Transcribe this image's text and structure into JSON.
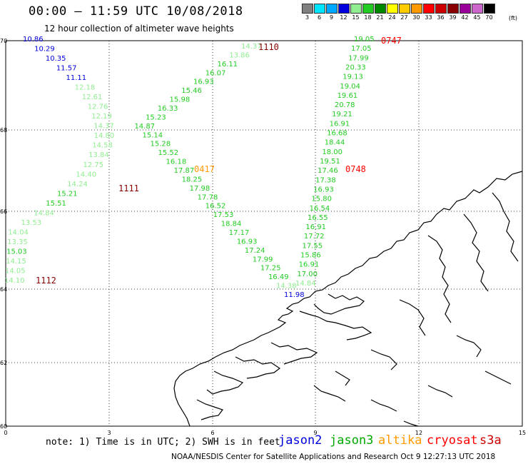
{
  "header": {
    "title": "00:00 – 11:59 UTC 10/08/2018",
    "subtitle": "12 hour collection of altimeter wave heights"
  },
  "color_scale": {
    "unit": "(ft)",
    "bins": [
      {
        "label": "3",
        "color": "#808080"
      },
      {
        "label": "6",
        "color": "#00e5ff"
      },
      {
        "label": "9",
        "color": "#00a8ff"
      },
      {
        "label": "12",
        "color": "#0000dd"
      },
      {
        "label": "15",
        "color": "#90ee90"
      },
      {
        "label": "18",
        "color": "#22cc22"
      },
      {
        "label": "21",
        "color": "#008800"
      },
      {
        "label": "24",
        "color": "#ffff00"
      },
      {
        "label": "27",
        "color": "#ffcc00"
      },
      {
        "label": "30",
        "color": "#ff9900"
      },
      {
        "label": "33",
        "color": "#ff0000"
      },
      {
        "label": "36",
        "color": "#cc0000"
      },
      {
        "label": "39",
        "color": "#880000"
      },
      {
        "label": "42",
        "color": "#990099"
      },
      {
        "label": "45",
        "color": "#cc66cc"
      },
      {
        "label": "70",
        "color": "#000000"
      }
    ]
  },
  "axes": {
    "lon_ticks": [
      "0",
      "3",
      "6",
      "9",
      "12",
      "15"
    ],
    "lat_ticks": [
      "70",
      "68",
      "66",
      "64",
      "62",
      "60"
    ]
  },
  "tracks": [
    {
      "values": [
        "10.86",
        "10.29",
        "10.35",
        "11.57",
        "11.11",
        "12.18",
        "12.61",
        "12.76",
        "12.19",
        "14.37",
        "14.80",
        "14.58",
        "13.84",
        "12.75",
        "14.40",
        "14.24",
        "15.21",
        "15.51",
        "14.84",
        "13.53",
        "14.04",
        "13.35",
        "15.03",
        "14.15",
        "14.05",
        "14.10"
      ],
      "colors": [
        "#0000dd",
        "#0000dd",
        "#0000dd",
        "#0000dd",
        "#0000dd",
        "#90ee90",
        "#90ee90",
        "#90ee90",
        "#90ee90",
        "#90ee90",
        "#90ee90",
        "#90ee90",
        "#90ee90",
        "#90ee90",
        "#90ee90",
        "#90ee90",
        "#22cc22",
        "#22cc22",
        "#90ee90",
        "#90ee90",
        "#90ee90",
        "#90ee90",
        "#22cc22",
        "#90ee90",
        "#90ee90",
        "#90ee90"
      ],
      "times": [
        {
          "label": "1111",
          "color": "#880000"
        },
        {
          "label": "1112",
          "color": "#880000"
        }
      ]
    },
    {
      "values": [
        "14.37",
        "13.86",
        "16.11",
        "16.07",
        "16.93",
        "15.46",
        "15.98",
        "16.33",
        "15.23",
        "14.87",
        "15.14",
        "15.28",
        "15.52",
        "16.18",
        "17.87",
        "18.25",
        "17.98",
        "17.78",
        "16.52",
        "17.53",
        "18.84",
        "17.17",
        "16.93",
        "17.24",
        "17.99",
        "17.25",
        "16.49",
        "14.38",
        "11.98"
      ],
      "colors": [
        "#90ee90",
        "#90ee90",
        "#22cc22",
        "#22cc22",
        "#22cc22",
        "#22cc22",
        "#22cc22",
        "#22cc22",
        "#22cc22",
        "#22cc22",
        "#22cc22",
        "#22cc22",
        "#22cc22",
        "#22cc22",
        "#22cc22",
        "#22cc22",
        "#22cc22",
        "#22cc22",
        "#22cc22",
        "#22cc22",
        "#22cc22",
        "#22cc22",
        "#22cc22",
        "#22cc22",
        "#22cc22",
        "#22cc22",
        "#22cc22",
        "#90ee90",
        "#0000dd"
      ],
      "times": [
        {
          "label": "1110",
          "color": "#880000"
        },
        {
          "label": "0417",
          "color": "#ff9900"
        }
      ]
    },
    {
      "values": [
        "19.05",
        "17.05",
        "17.99",
        "20.33",
        "19.13",
        "19.04",
        "19.61",
        "20.78",
        "19.21",
        "16.91",
        "16.68",
        "18.44",
        "18.00",
        "19.51",
        "17.46",
        "17.38",
        "16.93",
        "15.80",
        "16.54",
        "16.55",
        "16.91",
        "17.72",
        "17.55",
        "15.86",
        "16.91",
        "17.00",
        "14.84"
      ],
      "colors": [
        "#22cc22",
        "#22cc22",
        "#22cc22",
        "#22cc22",
        "#22cc22",
        "#22cc22",
        "#22cc22",
        "#22cc22",
        "#22cc22",
        "#22cc22",
        "#22cc22",
        "#22cc22",
        "#22cc22",
        "#22cc22",
        "#22cc22",
        "#22cc22",
        "#22cc22",
        "#22cc22",
        "#22cc22",
        "#22cc22",
        "#22cc22",
        "#22cc22",
        "#22cc22",
        "#22cc22",
        "#22cc22",
        "#22cc22",
        "#90ee90"
      ],
      "times": [
        {
          "label": "0747",
          "color": "#ff0000"
        },
        {
          "label": "0748",
          "color": "#ff0000"
        }
      ]
    }
  ],
  "footer": {
    "note": "note: 1) Time is in UTC; 2) SWH is in feet",
    "satellites": [
      {
        "label": "jason2",
        "color": "#0000dd"
      },
      {
        "label": "jason3",
        "color": "#00aa00"
      },
      {
        "label": "altika",
        "color": "#ff9900"
      },
      {
        "label": "cryosat",
        "color": "#ff0000"
      },
      {
        "label": "s3a",
        "color": "#cc0000"
      }
    ],
    "credit": "NOAA/NESDIS Center for Satellite Applications and Research    Oct  9 12:27:13 UTC 2018"
  }
}
